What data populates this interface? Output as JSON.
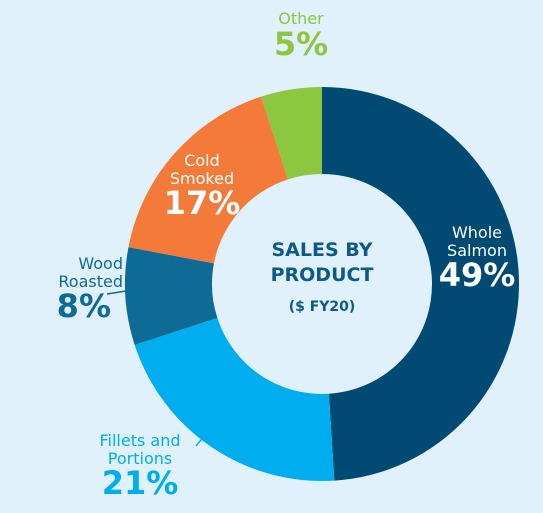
{
  "chart_data": {
    "type": "donut",
    "title": "SALES BY PRODUCT",
    "subtitle": "($ FY20)",
    "categories": [
      "Whole Salmon",
      "Fillets and Portions",
      "Wood Roasted",
      "Cold Smoked",
      "Other"
    ],
    "values": [
      49,
      21,
      8,
      17,
      5
    ],
    "value_labels": [
      "49%",
      "21%",
      "8%",
      "17%",
      "5%"
    ],
    "colors": [
      "#004a73",
      "#00aeef",
      "#0d6b96",
      "#f47a3a",
      "#8dc63f"
    ]
  }
}
